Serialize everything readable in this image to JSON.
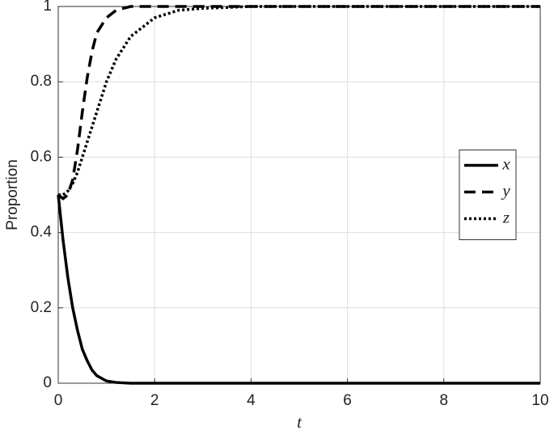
{
  "chart_data": {
    "type": "line",
    "xlabel": "t",
    "ylabel": "Proportion",
    "x": [
      0,
      0.1,
      0.2,
      0.3,
      0.4,
      0.5,
      0.6,
      0.7,
      0.8,
      1,
      1.2,
      1.5,
      2,
      2.5,
      3,
      4,
      6,
      8,
      10
    ],
    "series": [
      {
        "name": "x",
        "color": "#000000",
        "dash": "solid",
        "values": [
          0.5,
          0.38,
          0.28,
          0.2,
          0.14,
          0.09,
          0.06,
          0.035,
          0.02,
          0.006,
          0.002,
          0,
          0,
          0,
          0,
          0,
          0,
          0,
          0
        ]
      },
      {
        "name": "y",
        "color": "#000000",
        "dash": "dashed",
        "values": [
          0.5,
          0.49,
          0.5,
          0.54,
          0.62,
          0.72,
          0.81,
          0.88,
          0.93,
          0.97,
          0.99,
          1,
          1,
          1,
          1,
          1,
          1,
          1,
          1
        ]
      },
      {
        "name": "z",
        "color": "#000000",
        "dash": "dotted",
        "values": [
          0.5,
          0.5,
          0.51,
          0.53,
          0.56,
          0.6,
          0.64,
          0.68,
          0.72,
          0.8,
          0.86,
          0.92,
          0.97,
          0.99,
          0.995,
          1,
          1,
          1,
          1
        ]
      }
    ],
    "xlim": [
      0,
      10
    ],
    "xticks": [
      0,
      2,
      4,
      6,
      8,
      10
    ],
    "ylim": [
      0,
      1
    ],
    "yticks": [
      0,
      0.2,
      0.4,
      0.6,
      0.8,
      1
    ],
    "grid": true,
    "legend": "east"
  }
}
